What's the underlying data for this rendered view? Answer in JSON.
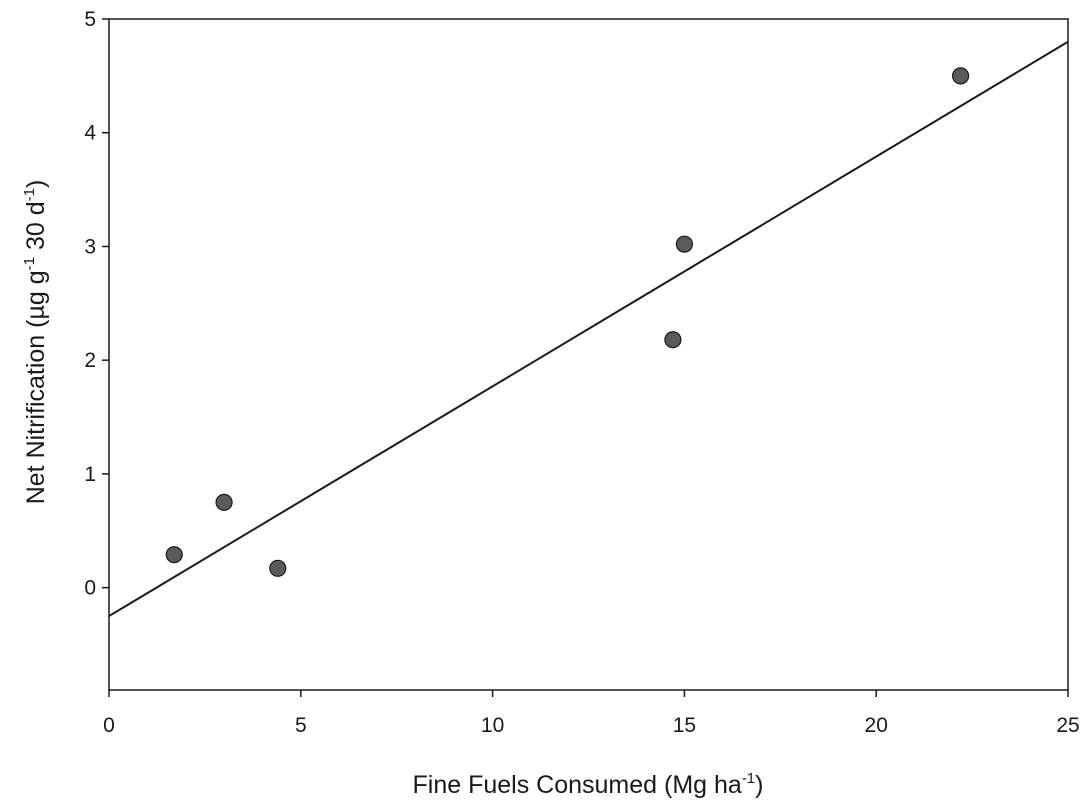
{
  "chart_data": {
    "type": "scatter",
    "title": "",
    "xlabel": {
      "main": "Fine Fuels Consumed (Mg ha",
      "sup": "-1",
      "tail": ")"
    },
    "ylabel": {
      "main": "Net Nitrification (µg g",
      "sup1": "-1",
      "mid": " 30 d",
      "sup2": "-1",
      "tail": ")"
    },
    "xlim": [
      0,
      25
    ],
    "ylim": [
      -0.9,
      5
    ],
    "x_ticks": [
      0,
      5,
      10,
      15,
      20,
      25
    ],
    "y_ticks": [
      0,
      1,
      2,
      3,
      4,
      5
    ],
    "grid": false,
    "legend": "none",
    "marker_color": "#5a5a5a",
    "line_color": "#1a1a1a",
    "series": [
      {
        "points": [
          {
            "x": 1.7,
            "y": 0.29
          },
          {
            "x": 3.0,
            "y": 0.75
          },
          {
            "x": 4.4,
            "y": 0.17
          },
          {
            "x": 14.7,
            "y": 2.18
          },
          {
            "x": 15.0,
            "y": 3.02
          },
          {
            "x": 22.2,
            "y": 4.5
          }
        ]
      }
    ],
    "regression_line": {
      "x": [
        0,
        25
      ],
      "y": [
        -0.25,
        4.8
      ]
    }
  }
}
